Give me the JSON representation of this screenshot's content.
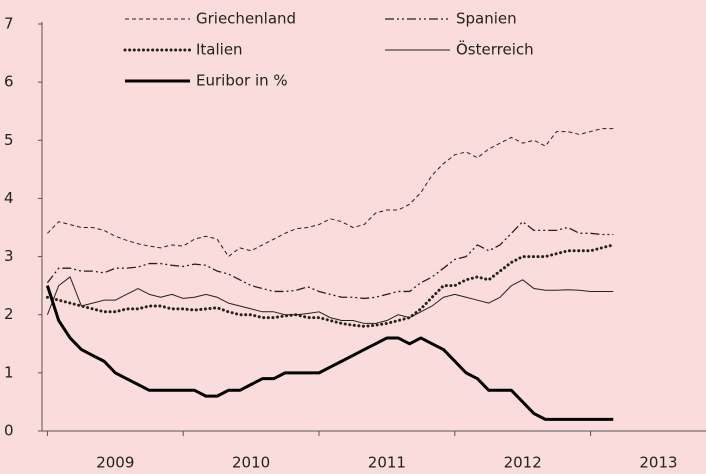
{
  "chart_data": {
    "type": "line",
    "x": [
      2009,
      2009.083,
      2009.167,
      2009.25,
      2009.333,
      2009.417,
      2009.5,
      2009.583,
      2009.667,
      2009.75,
      2009.833,
      2009.917,
      2010,
      2010.083,
      2010.167,
      2010.25,
      2010.333,
      2010.417,
      2010.5,
      2010.583,
      2010.667,
      2010.75,
      2010.833,
      2010.917,
      2011,
      2011.083,
      2011.167,
      2011.25,
      2011.333,
      2011.417,
      2011.5,
      2011.583,
      2011.667,
      2011.75,
      2011.833,
      2011.917,
      2012,
      2012.083,
      2012.167,
      2012.25,
      2012.333,
      2012.417,
      2012.5,
      2012.583,
      2012.667,
      2012.75,
      2012.833,
      2012.917,
      2013,
      2013.083,
      2013.167
    ],
    "series": [
      {
        "name": "Griechenland",
        "color": "#222222",
        "style": "dashed",
        "values": [
          3.4,
          3.6,
          3.55,
          3.5,
          3.5,
          3.45,
          3.35,
          3.28,
          3.22,
          3.18,
          3.15,
          3.2,
          3.18,
          3.3,
          3.35,
          3.3,
          3.0,
          3.15,
          3.1,
          3.2,
          3.3,
          3.4,
          3.48,
          3.5,
          3.55,
          3.65,
          3.6,
          3.5,
          3.55,
          3.75,
          3.8,
          3.8,
          3.9,
          4.1,
          4.4,
          4.6,
          4.75,
          4.8,
          4.7,
          4.85,
          4.95,
          5.05,
          4.95,
          5.0,
          4.9,
          5.15,
          5.15,
          5.1,
          5.15,
          5.2,
          5.2
        ]
      },
      {
        "name": "Spanien",
        "color": "#222222",
        "style": "dashdot",
        "values": [
          2.55,
          2.8,
          2.8,
          2.75,
          2.75,
          2.72,
          2.8,
          2.8,
          2.82,
          2.88,
          2.88,
          2.85,
          2.83,
          2.87,
          2.85,
          2.75,
          2.7,
          2.6,
          2.5,
          2.45,
          2.4,
          2.4,
          2.42,
          2.48,
          2.4,
          2.35,
          2.3,
          2.3,
          2.28,
          2.3,
          2.35,
          2.4,
          2.4,
          2.55,
          2.65,
          2.8,
          2.95,
          3.0,
          3.2,
          3.1,
          3.2,
          3.4,
          3.6,
          3.45,
          3.45,
          3.45,
          3.5,
          3.4,
          3.4,
          3.38,
          3.38
        ]
      },
      {
        "name": "Italien",
        "color": "#222222",
        "style": "dotted",
        "values": [
          2.3,
          2.25,
          2.2,
          2.15,
          2.1,
          2.05,
          2.05,
          2.1,
          2.1,
          2.15,
          2.15,
          2.1,
          2.1,
          2.08,
          2.1,
          2.12,
          2.05,
          2.0,
          2.0,
          1.95,
          1.95,
          1.98,
          2.0,
          1.95,
          1.95,
          1.9,
          1.85,
          1.82,
          1.8,
          1.82,
          1.85,
          1.9,
          1.95,
          2.1,
          2.3,
          2.5,
          2.5,
          2.6,
          2.65,
          2.6,
          2.75,
          2.9,
          3.0,
          3.0,
          3.0,
          3.05,
          3.1,
          3.1,
          3.1,
          3.15,
          3.2
        ]
      },
      {
        "name": "Österreich",
        "color": "#222222",
        "style": "thin",
        "values": [
          2.0,
          2.5,
          2.65,
          2.15,
          2.2,
          2.25,
          2.25,
          2.35,
          2.45,
          2.35,
          2.3,
          2.35,
          2.28,
          2.3,
          2.35,
          2.3,
          2.2,
          2.15,
          2.1,
          2.05,
          2.05,
          2.0,
          2.0,
          2.02,
          2.05,
          1.95,
          1.9,
          1.9,
          1.85,
          1.85,
          1.9,
          2.0,
          1.95,
          2.05,
          2.15,
          2.3,
          2.35,
          2.3,
          2.25,
          2.2,
          2.3,
          2.5,
          2.6,
          2.45,
          2.42,
          2.42,
          2.43,
          2.42,
          2.4,
          2.4,
          2.4
        ]
      },
      {
        "name": "Euribor in %",
        "color": "#000000",
        "style": "thick",
        "values": [
          2.5,
          1.9,
          1.6,
          1.4,
          1.3,
          1.2,
          1.0,
          0.9,
          0.8,
          0.7,
          0.7,
          0.7,
          0.7,
          0.7,
          0.6,
          0.6,
          0.7,
          0.7,
          0.8,
          0.9,
          0.9,
          1.0,
          1.0,
          1.0,
          1.0,
          1.1,
          1.2,
          1.3,
          1.4,
          1.5,
          1.6,
          1.6,
          1.5,
          1.6,
          1.5,
          1.4,
          1.2,
          1.0,
          0.9,
          0.7,
          0.7,
          0.7,
          0.5,
          0.3,
          0.2,
          0.2,
          0.2,
          0.2,
          0.2,
          0.2,
          0.2
        ]
      }
    ],
    "xlim": [
      2008.96,
      2013.85
    ],
    "xticks": [
      2009,
      2010,
      2011,
      2012,
      2013
    ],
    "ylim": [
      0,
      7
    ],
    "yticks": [
      0,
      1,
      2,
      3,
      4,
      5,
      6,
      7
    ],
    "legend": "top"
  }
}
